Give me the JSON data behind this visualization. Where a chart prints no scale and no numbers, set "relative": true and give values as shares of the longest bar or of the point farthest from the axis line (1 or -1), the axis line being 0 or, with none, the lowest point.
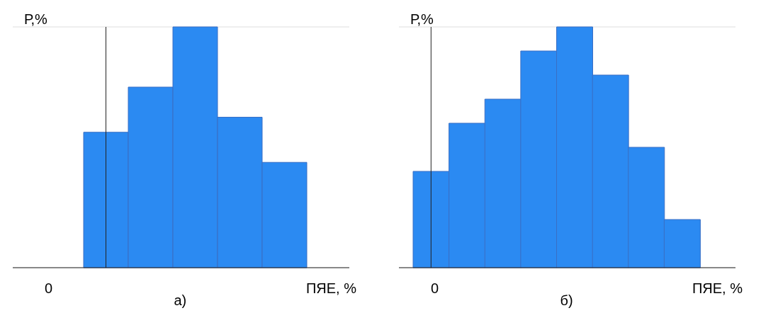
{
  "chart_data": [
    {
      "type": "bar",
      "relative": true,
      "categories": [
        null,
        null,
        null,
        null,
        null
      ],
      "values": [
        0.5625,
        0.75,
        1,
        0.625,
        0.4375
      ],
      "color": "#2b8af2",
      "ylabel": "Р,%",
      "xlabel": "ПЯЕ, %",
      "annotations": [
        "0",
        "а)"
      ],
      "grid": "y",
      "tick_labels": false
    },
    {
      "type": "bar",
      "relative": true,
      "categories": [
        null,
        null,
        null,
        null,
        null,
        null,
        null,
        null
      ],
      "values": [
        0.4,
        0.6,
        0.7,
        0.9,
        1,
        0.8,
        0.5,
        0.2
      ],
      "color": "#2b8af2",
      "ylabel": "Р,%",
      "xlabel": "ПЯЕ, %",
      "annotations": [
        "0",
        "б)"
      ],
      "grid": "y",
      "tick_labels": false
    }
  ]
}
